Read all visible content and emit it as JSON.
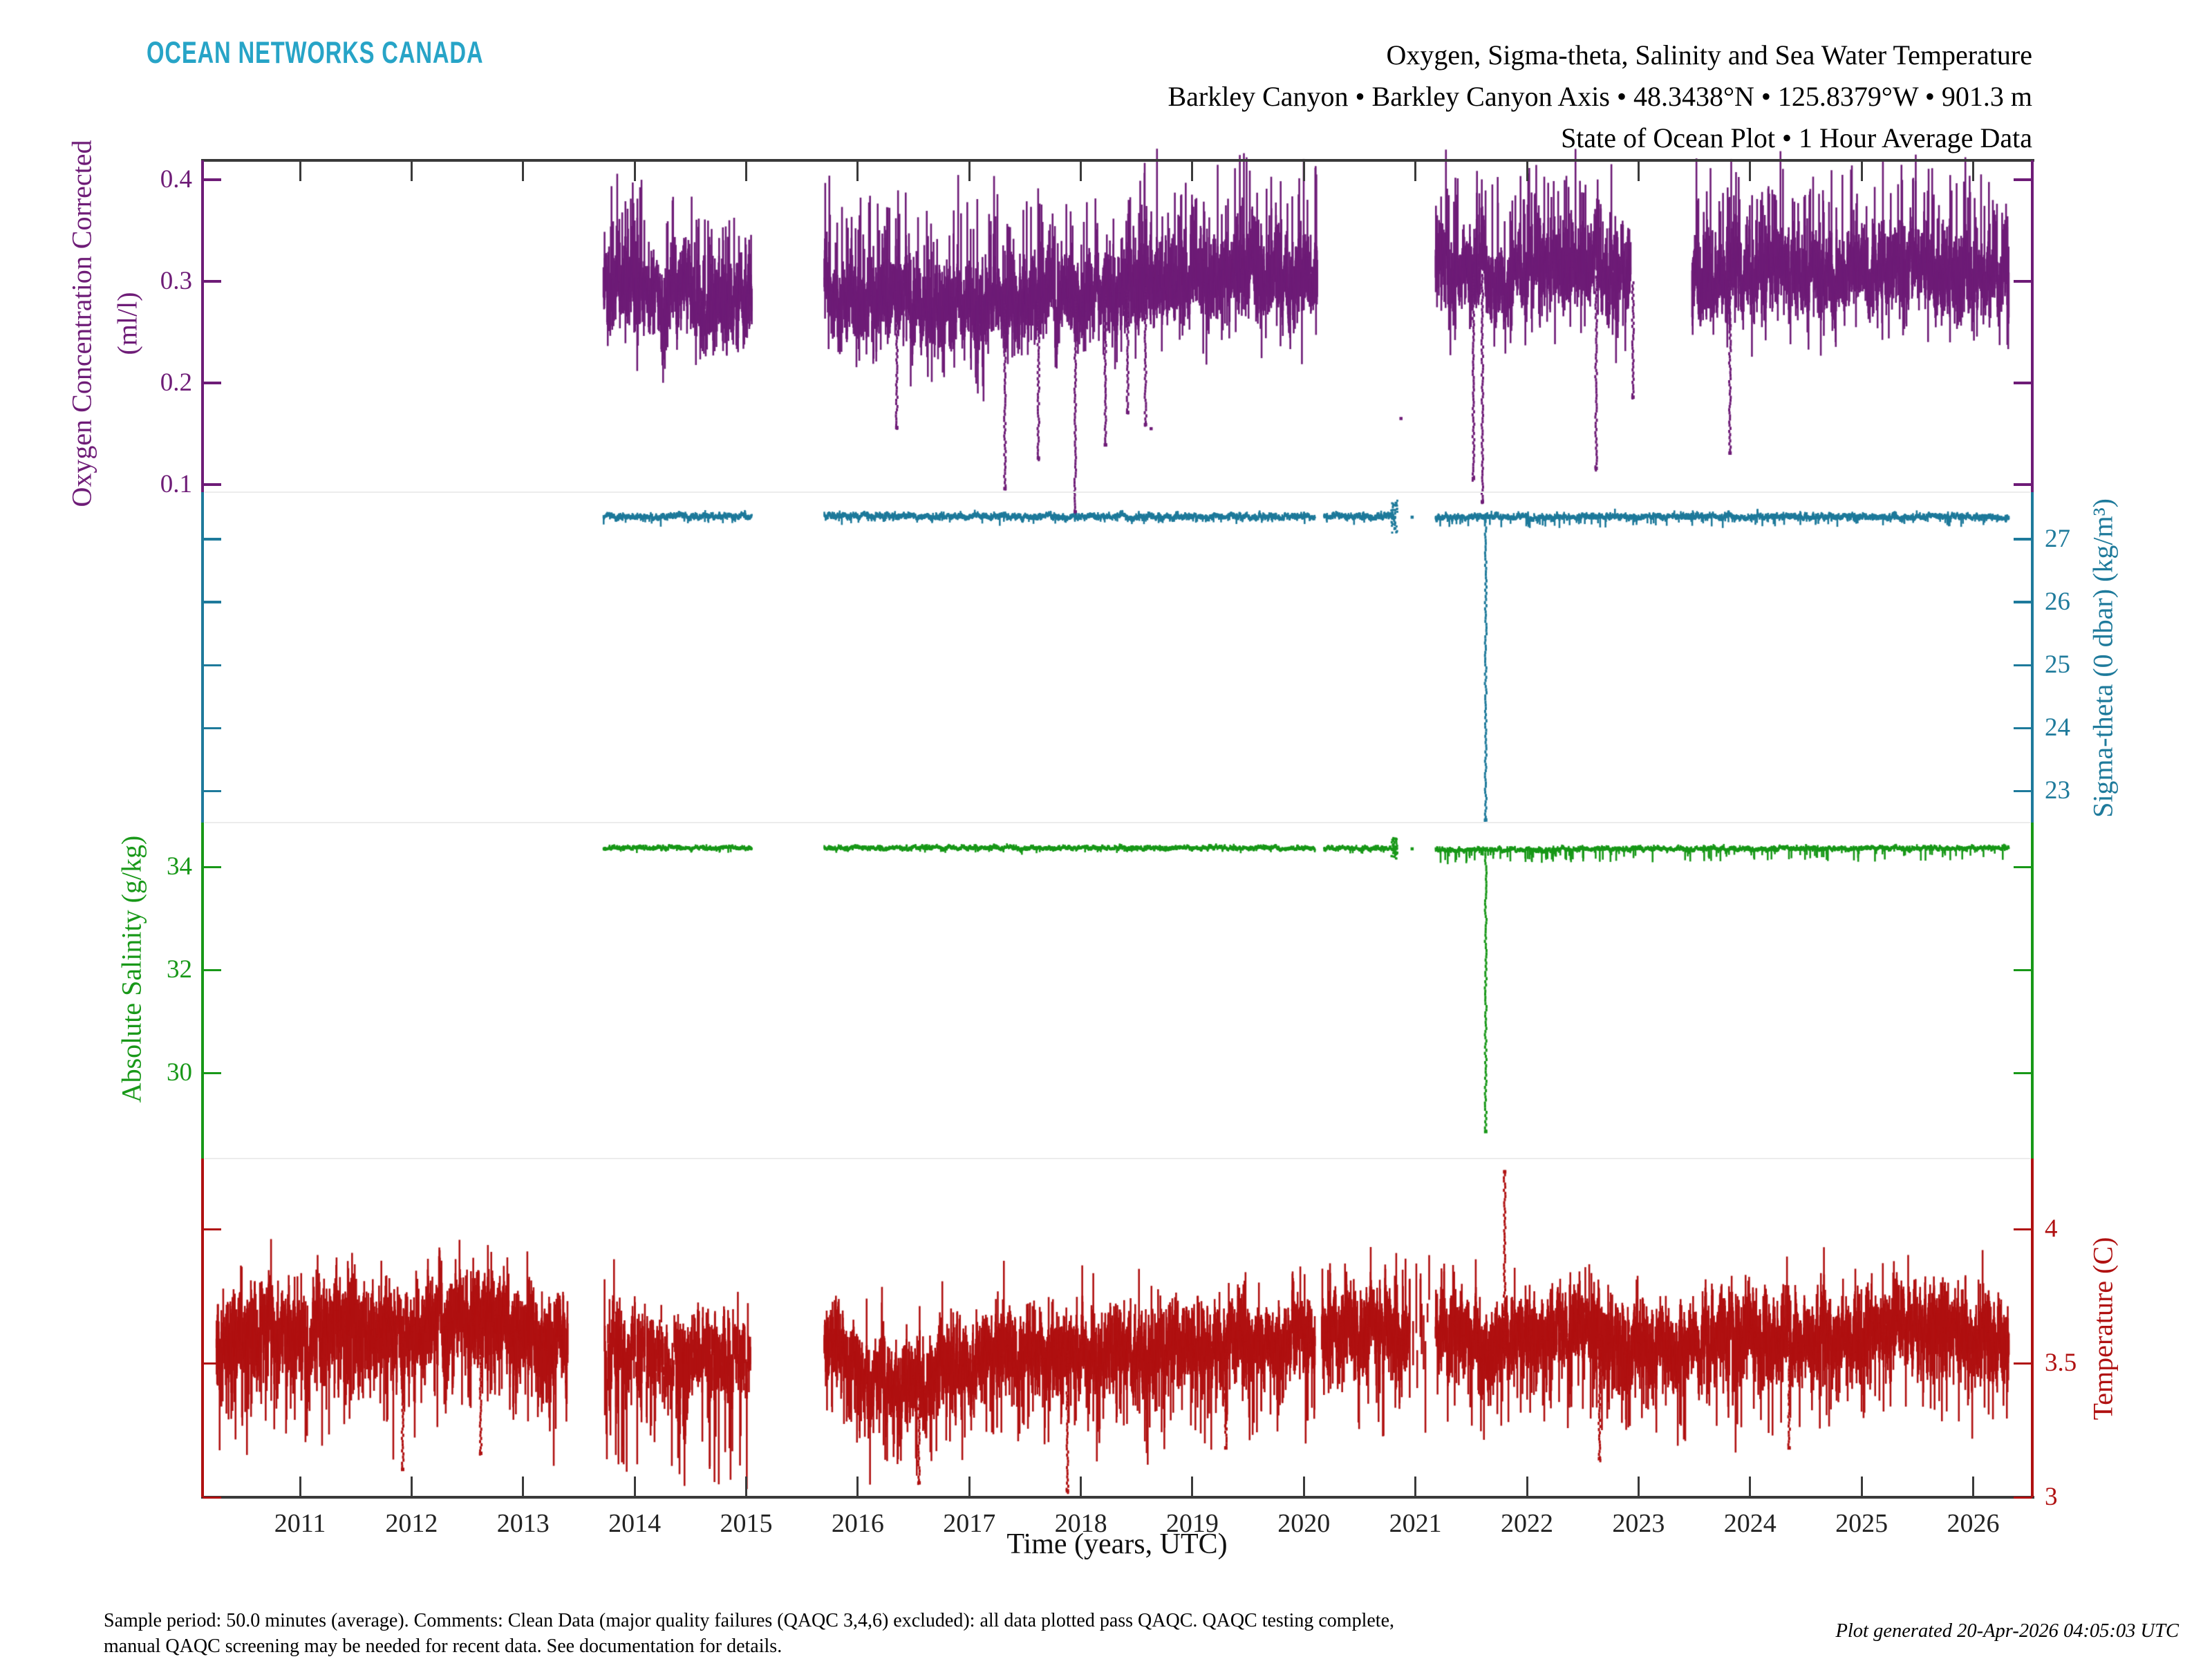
{
  "branding": {
    "logo": "OCEAN NETWORKS CANADA",
    "color": "#27A4C7"
  },
  "title": {
    "line1": "Oxygen, Sigma-theta, Salinity and Sea Water Temperature",
    "line2": "Barkley Canyon • Barkley Canyon Axis • 48.3438°N • 125.8379°W • 901.3 m",
    "line3": "State of Ocean Plot • 1 Hour Average Data"
  },
  "footer": {
    "left_line1": "Sample period: 50.0 minutes (average). Comments: Clean Data (major quality failures (QAQC 3,4,6) excluded): all data plotted pass QAQC. QAQC testing complete,",
    "left_line2": "manual QAQC screening may be needed for recent data. See documentation for details.",
    "generated": "Plot generated 20-Apr-2026 04:05:03 UTC"
  },
  "chart_data": {
    "type": "scatter",
    "title": "Oxygen, Sigma-theta, Salinity and Sea Water Temperature",
    "grid": false,
    "legend": "none (four stacked colored axes)",
    "axes": {
      "x": {
        "title": "Time (years, UTC)",
        "range": [
          2010.126,
          2026.53
        ],
        "tick_years": [
          2011,
          2012,
          2013,
          2014,
          2015,
          2016,
          2017,
          2018,
          2019,
          2020,
          2021,
          2022,
          2023,
          2024,
          2025,
          2026
        ]
      },
      "y_bands": [
        {
          "id": "oxygen",
          "side_labels": "left",
          "color": "#6E1C77",
          "title": "Oxygen Concentration Corrected",
          "unit": "(ml/l)",
          "range_top": 0.419,
          "range_bottom": 0.0925,
          "ticks": [
            0.4,
            0.3,
            0.2,
            0.1
          ],
          "tick_labels": [
            "0.4",
            "0.3",
            "0.2",
            "0.1"
          ]
        },
        {
          "id": "sigma_theta",
          "side_labels": "right",
          "color": "#1E7A9B",
          "title": "Sigma-theta (0 dbar) (kg/m³)",
          "unit": "",
          "range_top": 27.747,
          "range_bottom": 22.495,
          "ticks": [
            27,
            26,
            25,
            24,
            23
          ],
          "tick_labels": [
            "27",
            "26",
            "25",
            "24",
            "23"
          ]
        },
        {
          "id": "salinity",
          "side_labels": "left",
          "color": "#189818",
          "title": "Absolute Salinity (g/kg)",
          "unit": "",
          "range_top": 34.859,
          "range_bottom": 28.336,
          "ticks": [
            34,
            32,
            30
          ],
          "tick_labels": [
            "34",
            "32",
            "30"
          ]
        },
        {
          "id": "temperature",
          "side_labels": "right",
          "color": "#B01111",
          "title": "Temperature (C)",
          "unit": "",
          "range_top": 4.263,
          "range_bottom": 3.0,
          "ticks": [
            4,
            3.5,
            3
          ],
          "tick_labels": [
            "4",
            "3.5",
            "3"
          ]
        }
      ]
    },
    "series": [
      {
        "name": "oxygen_concentration_corrected",
        "label": "Oxygen Concentration Corrected (ml/l)",
        "color": "#6E1C77",
        "axis": "oxygen",
        "noise": {
          "sd": 0.013,
          "hs": 0.015,
          "pUp": 0.12,
          "up": 0.085,
          "pDn": 0.06,
          "down": 0.05,
          "density": 1
        },
        "segments": [
          {
            "t0": 2013.72,
            "t1": 2015.05,
            "base": [
              [
                2013.72,
                0.298
              ],
              [
                2013.95,
                0.305
              ],
              [
                2014.15,
                0.29
              ],
              [
                2014.3,
                0.283
              ],
              [
                2014.5,
                0.29
              ],
              [
                2014.7,
                0.272
              ],
              [
                2014.9,
                0.283
              ],
              [
                2015.05,
                0.283
              ]
            ]
          },
          {
            "t0": 2015.7,
            "t1": 2020.12,
            "base": [
              [
                2015.7,
                0.302
              ],
              [
                2015.9,
                0.29
              ],
              [
                2016.2,
                0.278
              ],
              [
                2016.7,
                0.272
              ],
              [
                2017.1,
                0.28
              ],
              [
                2017.6,
                0.282
              ],
              [
                2018.1,
                0.285
              ],
              [
                2018.6,
                0.295
              ],
              [
                2019.0,
                0.302
              ],
              [
                2019.5,
                0.305
              ],
              [
                2019.9,
                0.3
              ],
              [
                2020.12,
                0.295
              ]
            ]
          },
          {
            "t0": 2021.18,
            "t1": 2022.93,
            "base": [
              [
                2021.18,
                0.315
              ],
              [
                2021.5,
                0.308
              ],
              [
                2021.9,
                0.305
              ],
              [
                2022.3,
                0.312
              ],
              [
                2022.6,
                0.306
              ],
              [
                2022.93,
                0.3
              ]
            ]
          },
          {
            "t0": 2023.48,
            "t1": 2026.32,
            "base": [
              [
                2023.48,
                0.295
              ],
              [
                2023.9,
                0.302
              ],
              [
                2024.3,
                0.312
              ],
              [
                2024.7,
                0.3
              ],
              [
                2025.1,
                0.308
              ],
              [
                2025.5,
                0.315
              ],
              [
                2025.9,
                0.308
              ],
              [
                2026.32,
                0.3
              ]
            ]
          }
        ],
        "spikes": [
          [
            2016.35,
            0.155
          ],
          [
            2017.32,
            0.095
          ],
          [
            2017.62,
            0.125
          ],
          [
            2017.95,
            0.072
          ],
          [
            2018.22,
            0.138
          ],
          [
            2018.42,
            0.17
          ],
          [
            2018.58,
            0.158
          ],
          [
            2021.52,
            0.105
          ],
          [
            2021.6,
            0.082
          ],
          [
            2022.62,
            0.115
          ],
          [
            2022.95,
            0.185
          ],
          [
            2023.82,
            0.13
          ]
        ],
        "dots": [
          [
            2018.63,
            0.155
          ],
          [
            2020.87,
            0.165
          ]
        ]
      },
      {
        "name": "sigma_theta",
        "label": "Sigma-theta (0 dbar) (kg/m³)",
        "color": "#1E7A9B",
        "axis": "sigma_theta",
        "noise": {
          "sd": 0.02,
          "hs": 0.022,
          "pUp": 0.02,
          "up": 0.04,
          "pDn": 0.03,
          "down": 0.1,
          "density": 1
        },
        "segments": [
          {
            "t0": 2013.72,
            "t1": 2015.05,
            "base": [
              [
                2013.72,
                27.36
              ],
              [
                2015.05,
                27.36
              ]
            ]
          },
          {
            "t0": 2015.7,
            "t1": 2020.1,
            "base": [
              [
                2015.7,
                27.37
              ],
              [
                2017.5,
                27.36
              ],
              [
                2020.1,
                27.36
              ]
            ]
          },
          {
            "t0": 2020.18,
            "t1": 2020.82,
            "base": [
              [
                2020.18,
                27.36
              ],
              [
                2020.82,
                27.36
              ]
            ]
          },
          {
            "t0": 2021.18,
            "t1": 2026.32,
            "base": [
              [
                2021.18,
                27.35
              ],
              [
                2026.32,
                27.36
              ]
            ],
            "noise": {
              "pDn": 0.05,
              "down": 0.16
            }
          }
        ],
        "spikes": [
          [
            2021.63,
            22.52
          ]
        ],
        "dots": [
          [
            2020.97,
            27.35
          ],
          [
            2020.81,
            27.36,
            0.26
          ]
        ]
      },
      {
        "name": "absolute_salinity",
        "label": "Absolute Salinity (g/kg)",
        "color": "#189818",
        "axis": "salinity",
        "noise": {
          "sd": 0.018,
          "hs": 0.02,
          "pUp": 0.02,
          "up": 0.04,
          "pDn": 0.03,
          "down": 0.08,
          "density": 1
        },
        "segments": [
          {
            "t0": 2013.72,
            "t1": 2015.05,
            "base": [
              [
                2013.72,
                34.37
              ],
              [
                2015.05,
                34.37
              ]
            ]
          },
          {
            "t0": 2015.7,
            "t1": 2020.1,
            "base": [
              [
                2015.7,
                34.37
              ],
              [
                2020.1,
                34.37
              ]
            ]
          },
          {
            "t0": 2020.18,
            "t1": 2020.82,
            "base": [
              [
                2020.18,
                34.36
              ],
              [
                2020.82,
                34.36
              ]
            ]
          },
          {
            "t0": 2021.18,
            "t1": 2026.32,
            "base": [
              [
                2021.18,
                34.33
              ],
              [
                2023.0,
                34.35
              ],
              [
                2026.32,
                34.37
              ]
            ],
            "noise": {
              "pDn": 0.06,
              "down": 0.24
            }
          }
        ],
        "spikes": [
          [
            2021.63,
            28.84
          ]
        ],
        "dots": [
          [
            2020.97,
            34.35
          ],
          [
            2020.81,
            34.36,
            0.2
          ]
        ]
      },
      {
        "name": "sea_water_temperature",
        "label": "Temperature (C)",
        "color": "#B01111",
        "axis": "temperature",
        "noise": {
          "sd": 0.05,
          "hs": 0.055,
          "pUp": 0.08,
          "up": 0.17,
          "pDn": 0.1,
          "down": 0.26,
          "density": 1
        },
        "segments": [
          {
            "t0": 2010.25,
            "t1": 2013.4,
            "base": [
              [
                2010.25,
                3.57
              ],
              [
                2010.7,
                3.62
              ],
              [
                2011.1,
                3.6
              ],
              [
                2011.45,
                3.66
              ],
              [
                2011.8,
                3.6
              ],
              [
                2012.1,
                3.62
              ],
              [
                2012.5,
                3.67
              ],
              [
                2012.8,
                3.63
              ],
              [
                2013.1,
                3.6
              ],
              [
                2013.4,
                3.56
              ]
            ],
            "noise": {
              "sd": 0.055,
              "hs": 0.06,
              "pUp": 0.1,
              "up": 0.16,
              "pDn": 0.12,
              "down": 0.28
            }
          },
          {
            "t0": 2013.72,
            "t1": 2015.05,
            "base": [
              [
                2013.72,
                3.56
              ],
              [
                2014.2,
                3.53
              ],
              [
                2014.6,
                3.55
              ],
              [
                2015.05,
                3.52
              ]
            ],
            "noise": {
              "density": 0.45,
              "sd": 0.06,
              "hs": 0.07,
              "pDn": 0.2,
              "down": 0.4,
              "pUp": 0.06,
              "up": 0.12
            }
          },
          {
            "t0": 2015.7,
            "t1": 2020.1,
            "base": [
              [
                2015.7,
                3.58
              ],
              [
                2016.0,
                3.47
              ],
              [
                2016.35,
                3.4
              ],
              [
                2016.7,
                3.45
              ],
              [
                2017.1,
                3.51
              ],
              [
                2017.6,
                3.54
              ],
              [
                2018.1,
                3.55
              ],
              [
                2018.6,
                3.53
              ],
              [
                2019.1,
                3.57
              ],
              [
                2019.6,
                3.55
              ],
              [
                2020.1,
                3.6
              ]
            ]
          },
          {
            "t0": 2020.16,
            "t1": 2020.94,
            "base": [
              [
                2020.16,
                3.62
              ],
              [
                2020.94,
                3.63
              ]
            ]
          },
          {
            "t0": 2020.94,
            "t1": 2021.14,
            "base": [
              [
                2020.94,
                3.62
              ],
              [
                2021.14,
                3.62
              ]
            ],
            "noise": {
              "density": 0.1,
              "sd": 0.09,
              "hs": 0.12
            }
          },
          {
            "t0": 2021.18,
            "t1": 2026.32,
            "base": [
              [
                2021.18,
                3.6
              ],
              [
                2021.7,
                3.55
              ],
              [
                2022.1,
                3.6
              ],
              [
                2022.5,
                3.63
              ],
              [
                2023.0,
                3.55
              ],
              [
                2023.5,
                3.57
              ],
              [
                2024.0,
                3.61
              ],
              [
                2024.5,
                3.59
              ],
              [
                2025.0,
                3.6
              ],
              [
                2025.5,
                3.65
              ],
              [
                2026.0,
                3.59
              ],
              [
                2026.32,
                3.54
              ]
            ]
          }
        ],
        "spikes": [
          [
            2011.92,
            3.1
          ],
          [
            2012.62,
            3.16
          ],
          [
            2016.55,
            3.05
          ],
          [
            2017.88,
            3.02
          ],
          [
            2019.3,
            3.18
          ],
          [
            2021.8,
            4.22
          ],
          [
            2022.65,
            3.14
          ],
          [
            2024.35,
            3.18
          ]
        ],
        "dots": []
      }
    ]
  }
}
